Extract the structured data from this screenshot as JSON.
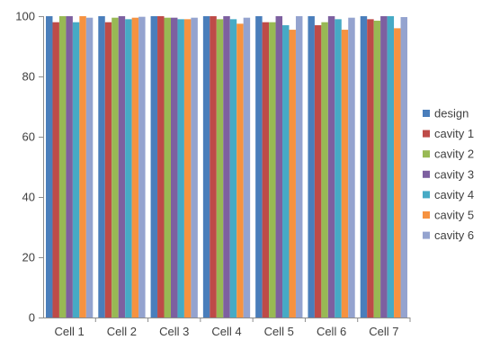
{
  "chart_data": {
    "type": "bar",
    "title": "",
    "xlabel": "",
    "ylabel": "",
    "ylim": [
      0,
      100
    ],
    "yticks": [
      0,
      20,
      40,
      60,
      80,
      100
    ],
    "grid": false,
    "legend_position": "right",
    "categories": [
      "Cell 1",
      "Cell 2",
      "Cell 3",
      "Cell 4",
      "Cell 5",
      "Cell 6",
      "Cell 7"
    ],
    "series": [
      {
        "name": "design",
        "color": "#4a7ebb",
        "values": [
          100,
          100,
          100,
          100,
          100,
          100,
          100
        ]
      },
      {
        "name": "cavity 1",
        "color": "#be4b48",
        "values": [
          98,
          98,
          100,
          100,
          98,
          97,
          99
        ]
      },
      {
        "name": "cavity 2",
        "color": "#98b954",
        "values": [
          100,
          99.5,
          99.5,
          99,
          98,
          98,
          98.5
        ]
      },
      {
        "name": "cavity 3",
        "color": "#7d60a0",
        "values": [
          100,
          100,
          99.5,
          100,
          100,
          100,
          100
        ]
      },
      {
        "name": "cavity 4",
        "color": "#46aac5",
        "values": [
          98,
          99,
          99,
          99,
          97,
          99,
          100
        ]
      },
      {
        "name": "cavity 5",
        "color": "#f69240",
        "values": [
          100,
          99.5,
          99,
          97.5,
          95.5,
          95.5,
          96
        ]
      },
      {
        "name": "cavity 6",
        "color": "#94a3cf",
        "values": [
          99.5,
          99.8,
          99.5,
          99.5,
          100,
          99.5,
          99.7
        ]
      }
    ]
  }
}
